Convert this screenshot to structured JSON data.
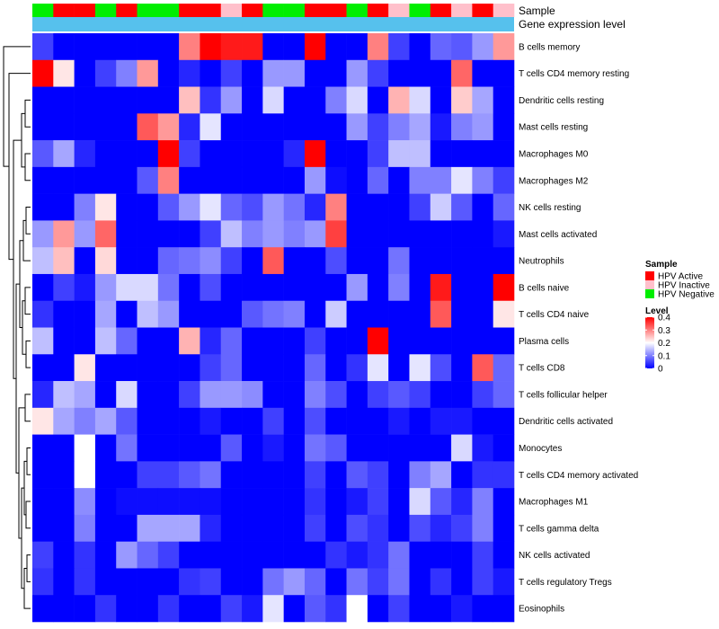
{
  "chart_data": {
    "type": "heatmap",
    "title": "",
    "colorscale": {
      "title": "Level",
      "range": [
        0,
        0.4
      ],
      "stops": [
        {
          "value": 0,
          "color": "#0000ff"
        },
        {
          "value": 0.2,
          "color": "#ffffff"
        },
        {
          "value": 0.4,
          "color": "#ff0000"
        }
      ],
      "ticks": [
        "0.4",
        "0.3",
        "0.2",
        "0.1",
        "0"
      ]
    },
    "annotations": {
      "sample_label": "Sample",
      "gene_label": "Gene expression level",
      "gene_color": "#56c1ed",
      "legend_title": "Sample",
      "groups": [
        {
          "name": "HPV Active",
          "color": "#ff0000"
        },
        {
          "name": "HPV Inactive",
          "color": "#ffc0cb"
        },
        {
          "name": "HPV Negative",
          "color": "#00ee00"
        }
      ],
      "sample_groups": [
        "HPV Negative",
        "HPV Active",
        "HPV Active",
        "HPV Negative",
        "HPV Active",
        "HPV Negative",
        "HPV Negative",
        "HPV Active",
        "HPV Active",
        "HPV Inactive",
        "HPV Active",
        "HPV Negative",
        "HPV Negative",
        "HPV Active",
        "HPV Active",
        "HPV Negative",
        "HPV Active",
        "HPV Inactive",
        "HPV Negative",
        "HPV Active",
        "HPV Inactive",
        "HPV Active",
        "HPV Inactive"
      ]
    },
    "rows": [
      "B cells memory",
      "T cells CD4 memory resting",
      "Dendritic cells resting",
      "Mast cells resting",
      "Macrophages M0",
      "Macrophages M2",
      "NK cells resting",
      "Mast cells activated",
      "Neutrophils",
      "B cells naive",
      "T cells CD4 naive",
      "Plasma cells",
      "T cells CD8",
      "T cells follicular helper",
      "Dendritic cells activated",
      "Monocytes",
      "T cells CD4 memory activated",
      "Macrophages M1",
      "T cells gamma delta",
      "NK cells activated",
      "T cells regulatory  Tregs",
      "Eosinophils"
    ],
    "values": [
      [
        0.05,
        0,
        0,
        0,
        0,
        0,
        0,
        0.3,
        0.4,
        0.38,
        0.38,
        0,
        0,
        0.4,
        0,
        0,
        0.3,
        0.05,
        0,
        0.08,
        0.07,
        0.12,
        0.28
      ],
      [
        0.4,
        0.22,
        0,
        0.05,
        0.1,
        0.28,
        0,
        0.03,
        0,
        0.05,
        0,
        0.12,
        0.12,
        0,
        0,
        0.12,
        0.05,
        0,
        0,
        0,
        0.32,
        0,
        0
      ],
      [
        0,
        0,
        0,
        0,
        0,
        0,
        0,
        0.25,
        0.04,
        0.12,
        0,
        0.17,
        0,
        0,
        0.1,
        0.17,
        0,
        0.26,
        0.17,
        0,
        0.24,
        0.13,
        0
      ],
      [
        0,
        0,
        0,
        0,
        0,
        0.33,
        0.28,
        0.03,
        0.18,
        0,
        0,
        0,
        0,
        0,
        0,
        0.12,
        0.05,
        0.1,
        0.13,
        0.02,
        0.1,
        0.12,
        0
      ],
      [
        0.07,
        0.13,
        0.03,
        0,
        0,
        0,
        0.4,
        0.05,
        0,
        0,
        0,
        0,
        0.03,
        0.4,
        0,
        0,
        0.05,
        0.15,
        0.15,
        0,
        0,
        0,
        0
      ],
      [
        0,
        0,
        0,
        0,
        0,
        0.07,
        0.3,
        0,
        0,
        0,
        0,
        0,
        0,
        0.12,
        0.01,
        0,
        0.08,
        0,
        0.1,
        0.1,
        0.18,
        0.1,
        0.05
      ],
      [
        0,
        0,
        0.1,
        0.22,
        0,
        0,
        0.07,
        0.12,
        0.18,
        0.08,
        0.06,
        0.12,
        0.09,
        0.03,
        0.3,
        0,
        0,
        0,
        0.05,
        0.16,
        0.07,
        0,
        0.08
      ],
      [
        0.12,
        0.28,
        0.12,
        0.32,
        0,
        0,
        0,
        0,
        0.05,
        0.15,
        0.1,
        0.12,
        0.1,
        0.12,
        0.35,
        0,
        0,
        0,
        0,
        0,
        0,
        0,
        0.02
      ],
      [
        0.15,
        0.25,
        0,
        0.23,
        0,
        0,
        0.08,
        0.09,
        0.11,
        0.05,
        0,
        0.33,
        0,
        0,
        0.06,
        0,
        0,
        0.09,
        0,
        0,
        0,
        0,
        0
      ],
      [
        0,
        0.05,
        0.02,
        0.12,
        0.17,
        0.17,
        0.09,
        0,
        0.06,
        0,
        0,
        0,
        0,
        0,
        0,
        0.12,
        0,
        0.1,
        0,
        0.38,
        0,
        0,
        0.4
      ],
      [
        0.04,
        0,
        0,
        0.13,
        0,
        0.15,
        0.12,
        0,
        0,
        0,
        0.07,
        0.09,
        0.1,
        0,
        0.16,
        0,
        0,
        0,
        0,
        0.33,
        0,
        0,
        0.22
      ],
      [
        0.15,
        0,
        0,
        0.15,
        0.08,
        0,
        0,
        0.26,
        0.03,
        0.08,
        0,
        0,
        0,
        0.05,
        0,
        0,
        0.4,
        0,
        0,
        0,
        0,
        0,
        0
      ],
      [
        0,
        0,
        0.22,
        0,
        0,
        0,
        0,
        0,
        0.05,
        0.08,
        0,
        0,
        0,
        0.08,
        0,
        0.04,
        0.18,
        0,
        0.18,
        0.06,
        0,
        0.33,
        0.08
      ],
      [
        0.03,
        0.15,
        0.13,
        0,
        0.17,
        0,
        0,
        0.05,
        0.12,
        0.12,
        0.11,
        0,
        0,
        0.1,
        0.06,
        0,
        0.05,
        0.07,
        0.05,
        0,
        0,
        0.05,
        0.08
      ],
      [
        0.22,
        0.13,
        0.1,
        0.13,
        0.07,
        0,
        0,
        0,
        0.02,
        0,
        0,
        0.05,
        0,
        0.06,
        0,
        0,
        0,
        0.02,
        0,
        0.02,
        0.02,
        0,
        0
      ],
      [
        0,
        0,
        0.2,
        0,
        0.09,
        0,
        0,
        0,
        0,
        0.07,
        0,
        0.02,
        0,
        0.09,
        0.07,
        0,
        0,
        0,
        0,
        0,
        0.17,
        0.02,
        0
      ],
      [
        0,
        0,
        0.2,
        0,
        0,
        0.05,
        0.05,
        0.07,
        0.09,
        0,
        0,
        0,
        0,
        0.05,
        0,
        0.07,
        0.05,
        0,
        0.1,
        0.13,
        0,
        0.04,
        0.04
      ],
      [
        0,
        0,
        0.11,
        0,
        0.01,
        0.01,
        0.01,
        0.01,
        0.01,
        0,
        0,
        0,
        0,
        0.04,
        0,
        0.02,
        0.05,
        0,
        0.17,
        0.07,
        0.03,
        0.1,
        0
      ],
      [
        0,
        0,
        0.1,
        0,
        0,
        0.13,
        0.13,
        0.13,
        0.03,
        0,
        0,
        0,
        0,
        0.05,
        0,
        0.06,
        0.04,
        0,
        0.06,
        0.03,
        0.05,
        0.1,
        0
      ],
      [
        0.05,
        0,
        0.04,
        0,
        0.12,
        0.08,
        0.05,
        0,
        0,
        0,
        0,
        0,
        0,
        0,
        0.04,
        0.02,
        0.04,
        0.09,
        0,
        0,
        0,
        0.05,
        0
      ],
      [
        0.04,
        0,
        0.04,
        0,
        0,
        0,
        0,
        0.04,
        0.05,
        0,
        0,
        0.09,
        0.12,
        0.08,
        0,
        0.09,
        0.05,
        0.09,
        0,
        0.04,
        0,
        0.05,
        0.02
      ],
      [
        0,
        0,
        0,
        0.04,
        0,
        0,
        0.04,
        0,
        0,
        0.05,
        0.02,
        0.18,
        0,
        0.07,
        0.04,
        0.2,
        0,
        0.05,
        0,
        0,
        0.02,
        0,
        0
      ]
    ]
  }
}
